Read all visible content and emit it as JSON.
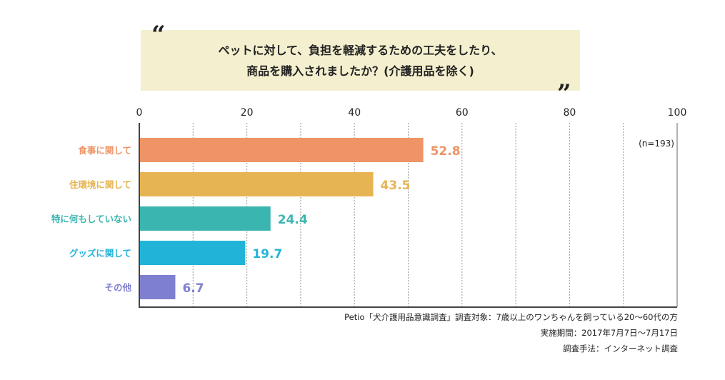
{
  "chart_data": {
    "type": "bar",
    "orientation": "horizontal",
    "title": "ペットに対して、負担を軽減するための工夫をしたり、\n商品を購入されましたか？(介護用品を除く)",
    "title_lines": [
      "ペットに対して、負担を軽減するための工夫をしたり、",
      "商品を購入されましたか？(介護用品を除く)"
    ],
    "categories": [
      "食事に関して",
      "住環境に関して",
      "特に何もしていない",
      "グッズに関して",
      "その他"
    ],
    "values": [
      52.8,
      43.5,
      24.4,
      19.7,
      6.7
    ],
    "value_labels": [
      "52.8",
      "43.5",
      "24.4",
      "19.7",
      "6.7"
    ],
    "colors": [
      "#EE9466",
      "#E6B452",
      "#3BB5AF",
      "#22B4D8",
      "#7F7FCF"
    ],
    "xlim": [
      0,
      100
    ],
    "xticks": [
      "0",
      "20",
      "40",
      "60",
      "80",
      "100"
    ],
    "grid": true,
    "sample_note": "(n=193)",
    "notes": [
      "Petio「犬介護用品意識調査」調査対象：7歳以上のワンちゃんを飼っている20〜60代の方",
      "実施期間：2017年7月7日〜7月17日",
      "調査手法：インターネット調査"
    ]
  }
}
